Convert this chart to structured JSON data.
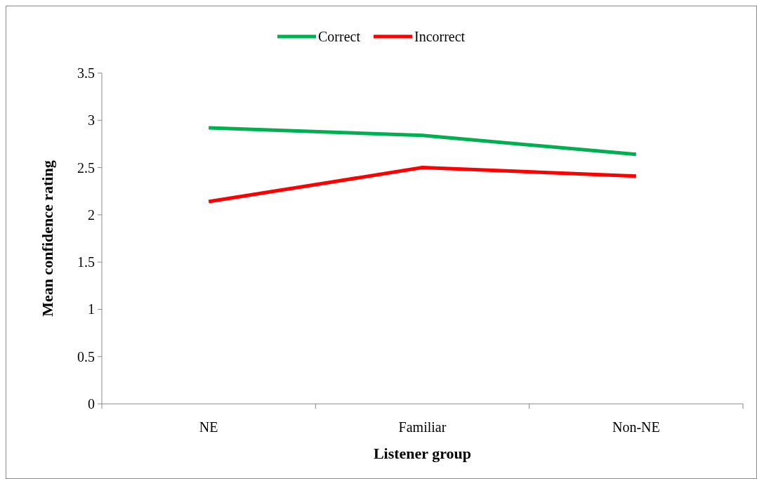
{
  "chart_data": {
    "type": "line",
    "xlabel": "Listener group",
    "ylabel": "Mean confidence rating",
    "categories": [
      "NE",
      "Familiar",
      "Non-NE"
    ],
    "series": [
      {
        "name": "Correct",
        "color": "#00b050",
        "values": [
          2.92,
          2.84,
          2.64
        ]
      },
      {
        "name": "Incorrect",
        "color": "#ff0000",
        "values": [
          2.14,
          2.5,
          2.41
        ]
      }
    ],
    "ylim": [
      0,
      3.5
    ],
    "yticks": [
      0,
      {
        "value": 0.5,
        "label": "0.5"
      },
      1,
      {
        "value": 1.5,
        "label": "1.5"
      },
      2,
      {
        "value": 2.5,
        "label": "2.5"
      },
      3,
      {
        "value": 3.5,
        "label": "3.5"
      }
    ],
    "grid": false,
    "legend": "top",
    "marker": "none",
    "line_style": "solid"
  }
}
